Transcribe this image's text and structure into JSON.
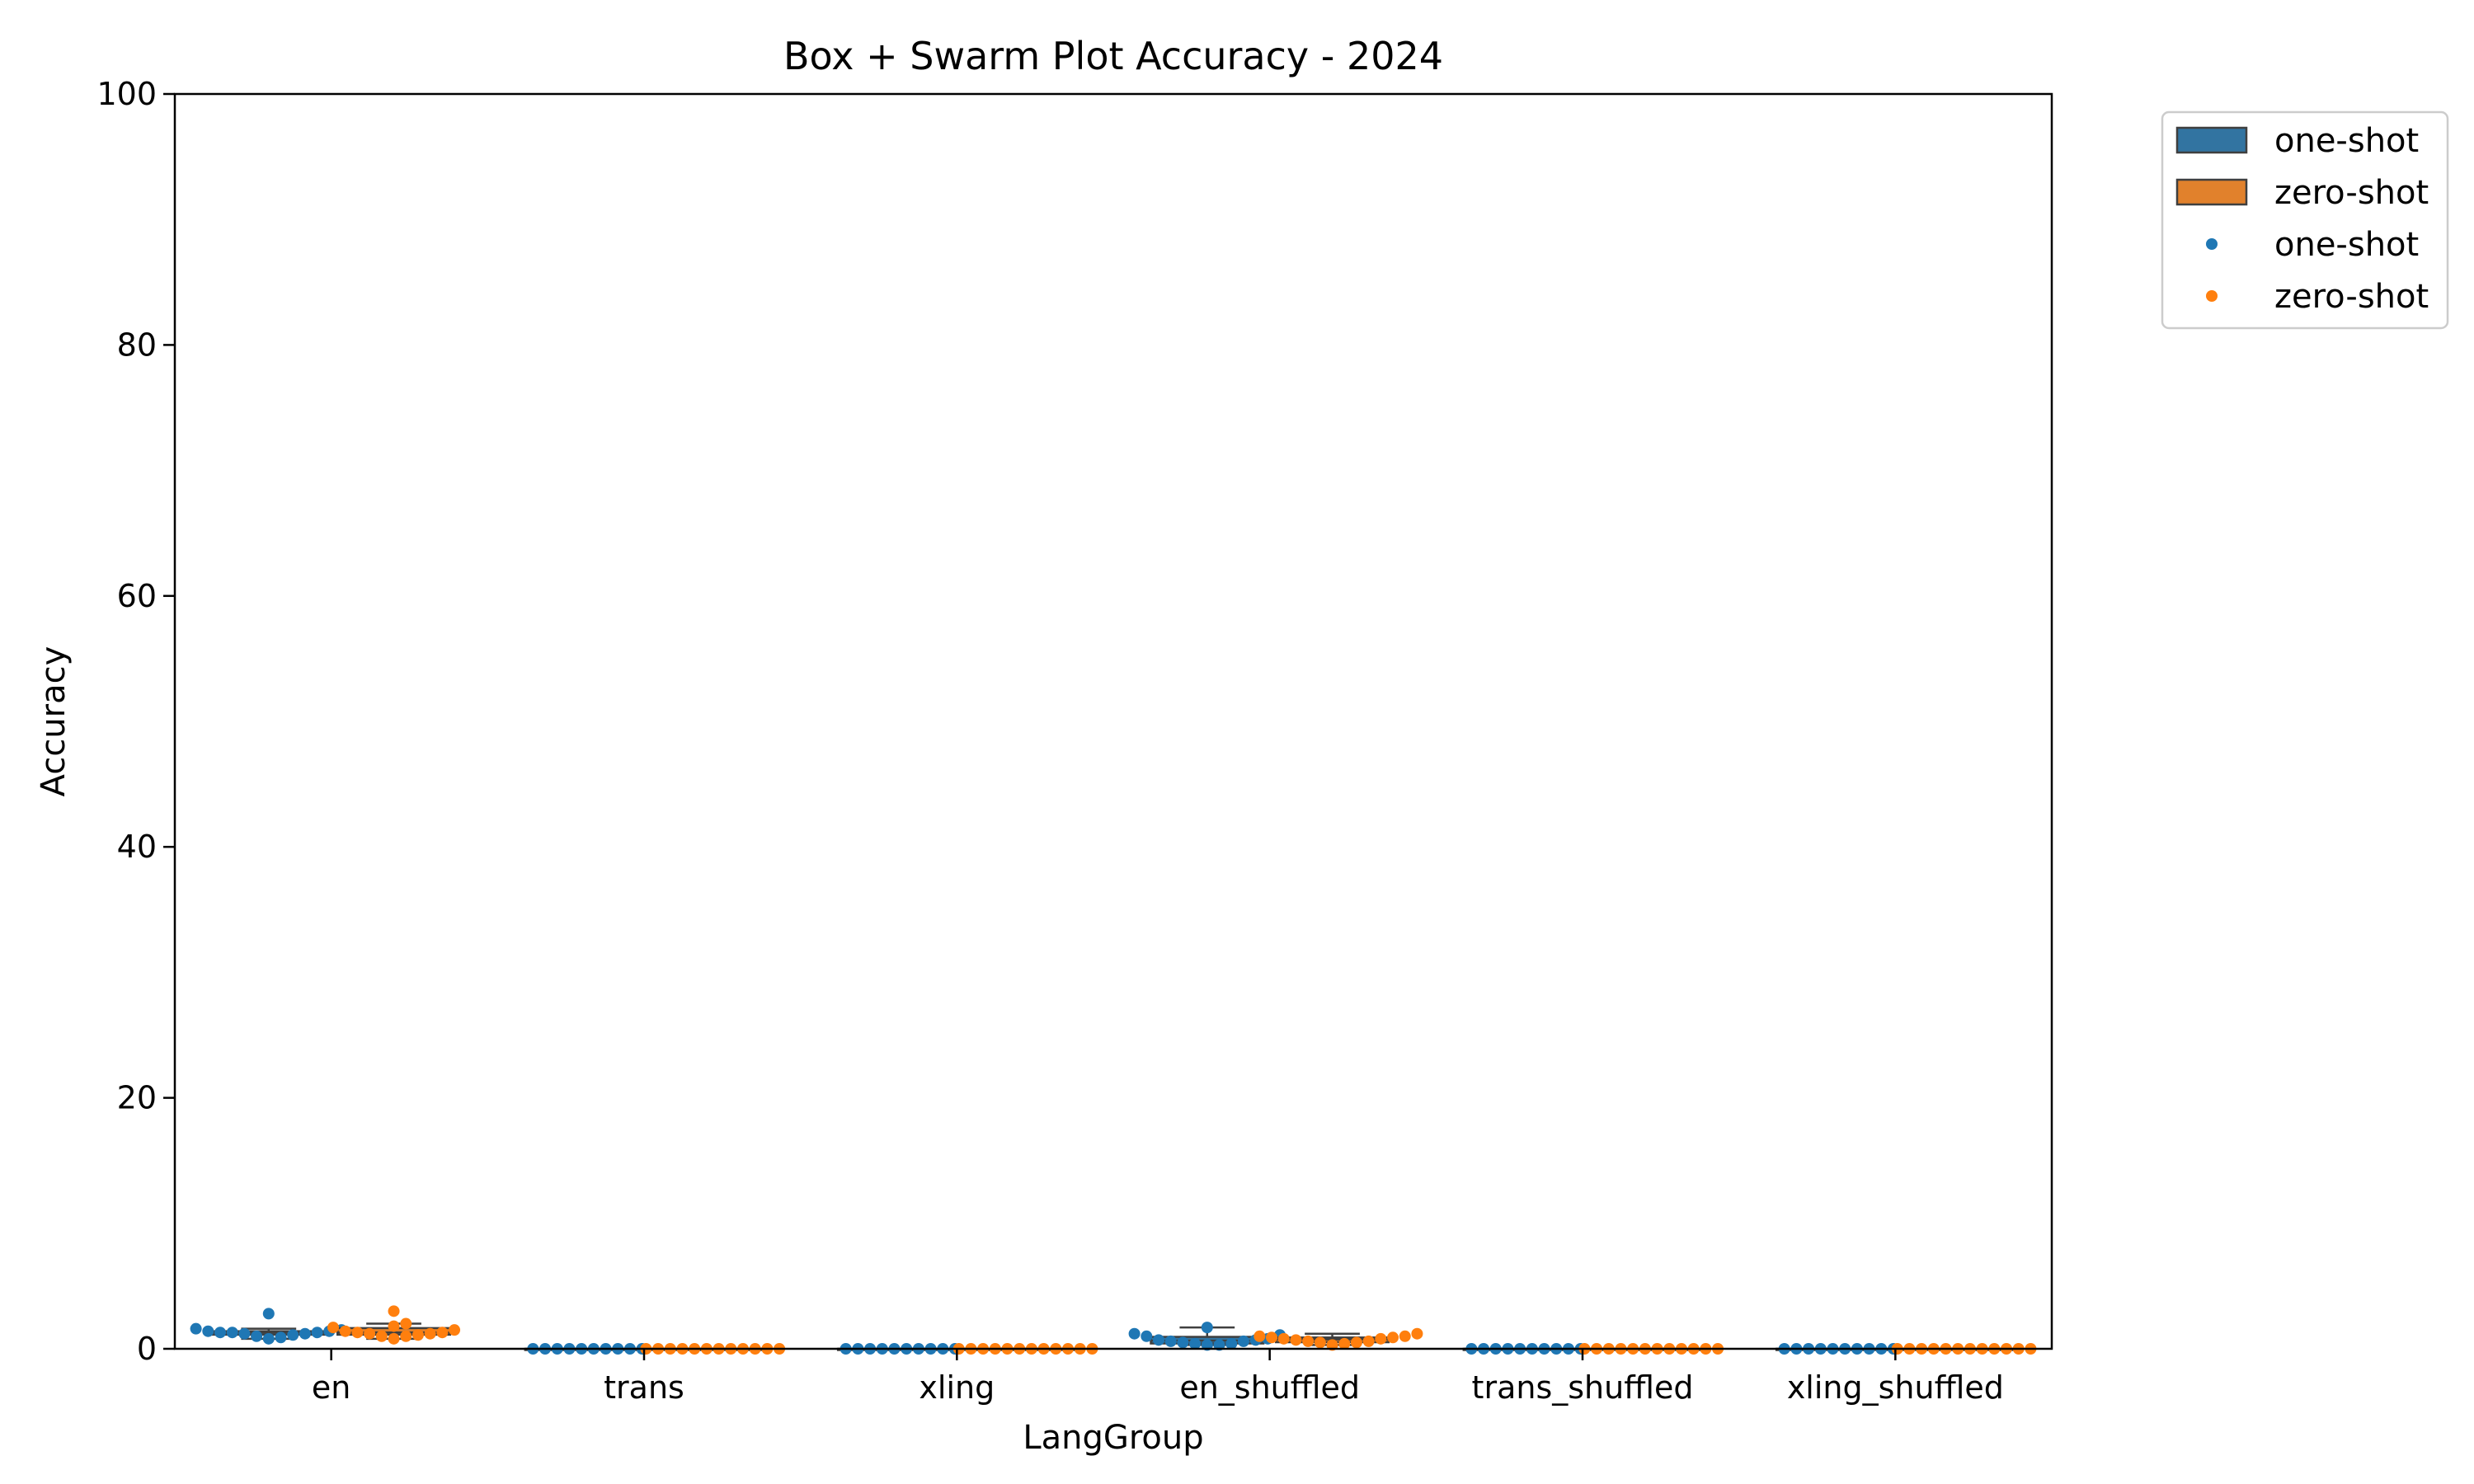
{
  "chart_data": {
    "type": "box+swarm",
    "title": "Box + Swarm Plot Accuracy - 2024",
    "xlabel": "LangGroup",
    "ylabel": "Accuracy",
    "ylim": [
      0,
      100
    ],
    "yticks": [
      0,
      20,
      40,
      60,
      80,
      100
    ],
    "categories": [
      "en",
      "trans",
      "xling",
      "en_shuffled",
      "trans_shuffled",
      "xling_shuffled"
    ],
    "grid": false,
    "legend_position": "outside-top-right",
    "legend": {
      "box_entries": [
        "one-shot",
        "zero-shot"
      ],
      "point_entries": [
        "one-shot",
        "zero-shot"
      ]
    },
    "series": [
      {
        "name": "one-shot",
        "box_color": "#3274a1",
        "point_color": "#1f77b4",
        "points": {
          "en": [
            1.6,
            1.4,
            1.3,
            1.2,
            0.9,
            1.1,
            2.8,
            0.8,
            1.0,
            1.2,
            1.3,
            1.4,
            1.5,
            1.3
          ],
          "trans": [
            0,
            0,
            0,
            0,
            0,
            0,
            0,
            0,
            0,
            0
          ],
          "xling": [
            0,
            0,
            0,
            0,
            0,
            0,
            0,
            0,
            0,
            0
          ],
          "en_shuffled": [
            1.1,
            1.0,
            0.7,
            0.6,
            0.3,
            0.4,
            1.2,
            1.7,
            0.5,
            0.7,
            0.8,
            0.6,
            0.4,
            0.3
          ],
          "trans_shuffled": [
            0,
            0,
            0,
            0,
            0,
            0,
            0,
            0,
            0,
            0
          ],
          "xling_shuffled": [
            0,
            0,
            0,
            0,
            0,
            0,
            0,
            0,
            0,
            0
          ]
        }
      },
      {
        "name": "zero-shot",
        "box_color": "#e1812c",
        "point_color": "#ff7f0e",
        "points": {
          "en": [
            1.7,
            1.5,
            1.2,
            1.0,
            1.3,
            2.0,
            3.0,
            0.8,
            1.8,
            1.1,
            1.0,
            1.2,
            1.3,
            1.4
          ],
          "trans": [
            0,
            0,
            0,
            0,
            0,
            0,
            0,
            0,
            0,
            0,
            0,
            0
          ],
          "xling": [
            0,
            0,
            0,
            0,
            0,
            0,
            0,
            0,
            0,
            0,
            0,
            0
          ],
          "en_shuffled": [
            0.9,
            0.8,
            0.6,
            0.5,
            0.3,
            0.4,
            1.2,
            0.5,
            0.6,
            0.7,
            0.9,
            1.0,
            1.0,
            0.8
          ],
          "trans_shuffled": [
            0,
            0,
            0,
            0,
            0,
            0,
            0,
            0,
            0,
            0,
            0,
            0
          ],
          "xling_shuffled": [
            0,
            0,
            0,
            0,
            0,
            0,
            0,
            0,
            0,
            0,
            0,
            0
          ]
        }
      }
    ]
  }
}
